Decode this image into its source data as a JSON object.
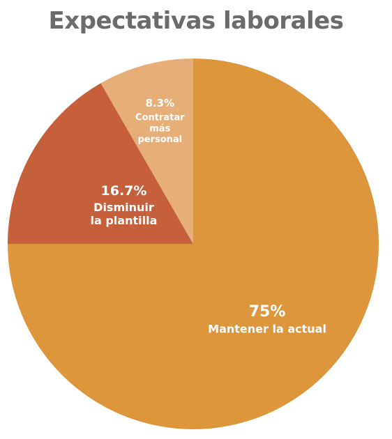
{
  "chart_data": {
    "type": "pie",
    "title": "Expectativas laborales",
    "slices": [
      {
        "label_lines": [
          "Mantener la actual"
        ],
        "value": 75,
        "value_label": "75%",
        "color": "#DE963C"
      },
      {
        "label_lines": [
          "Disminuir",
          "la plantilla"
        ],
        "value": 16.7,
        "value_label": "16.7%",
        "color": "#C5603A"
      },
      {
        "label_lines": [
          "Contratar",
          "más",
          "personal"
        ],
        "value": 8.3,
        "value_label": "8.3%",
        "color": "#E8AE78"
      }
    ]
  }
}
